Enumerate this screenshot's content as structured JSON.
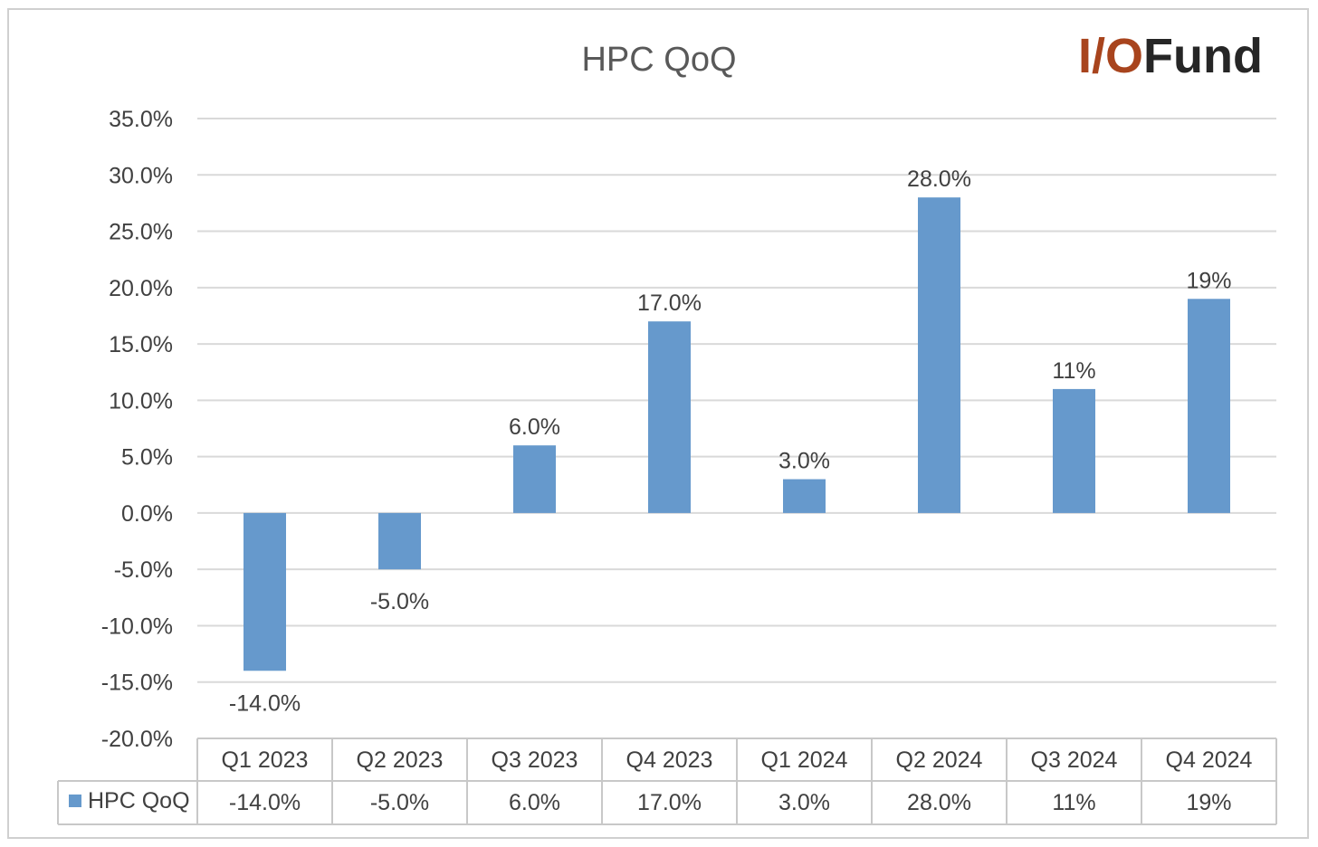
{
  "chart_data": {
    "type": "bar",
    "title": "HPC QoQ",
    "categories": [
      "Q1 2023",
      "Q2 2023",
      "Q3 2023",
      "Q4 2023",
      "Q1 2024",
      "Q2 2024",
      "Q3 2024",
      "Q4 2024"
    ],
    "series": [
      {
        "name": "HPC QoQ",
        "values": [
          -14.0,
          -5.0,
          6.0,
          17.0,
          3.0,
          28.0,
          11.0,
          19.0
        ],
        "labels": [
          "-14.0%",
          "-5.0%",
          "6.0%",
          "17.0%",
          "3.0%",
          "28.0%",
          "11%",
          "19%"
        ],
        "color": "#6699cc"
      }
    ],
    "ylim": [
      -20,
      35
    ],
    "y_ticks": [
      35,
      30,
      25,
      20,
      15,
      10,
      5,
      0,
      -5,
      -10,
      -15,
      -20
    ],
    "y_tick_labels": [
      "35.0%",
      "30.0%",
      "25.0%",
      "20.0%",
      "15.0%",
      "10.0%",
      "5.0%",
      "0.0%",
      "-5.0%",
      "-10.0%",
      "-15.0%",
      "-20.0%"
    ],
    "grid": true,
    "legend": "data-table",
    "xlabel": "",
    "ylabel": ""
  },
  "logo": {
    "part1": "I/O",
    "part2": "Fund"
  },
  "colors": {
    "bar": "#6699cc",
    "grid": "#d9d9d9",
    "logo_accent": "#a8441d",
    "logo_dark": "#262626"
  }
}
